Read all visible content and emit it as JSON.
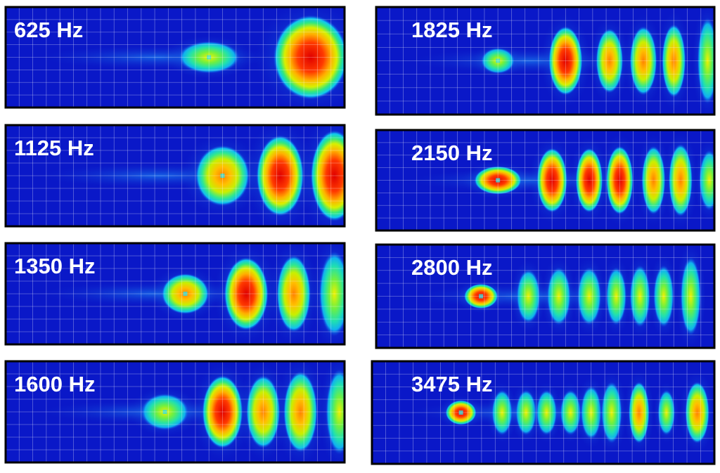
{
  "panels": [
    {
      "label": "625 Hz"
    },
    {
      "label": "1125 Hz"
    },
    {
      "label": "1350 Hz"
    },
    {
      "label": "1600 Hz"
    },
    {
      "label": "1825 Hz"
    },
    {
      "label": "2150 Hz"
    },
    {
      "label": "2800 Hz"
    },
    {
      "label": "3475 Hz"
    }
  ]
}
